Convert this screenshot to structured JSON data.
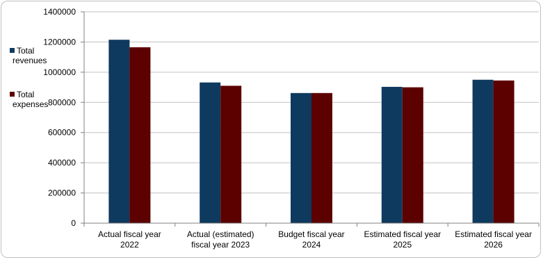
{
  "chart_data": {
    "type": "bar",
    "categories": [
      [
        "Actual fiscal year",
        "2022"
      ],
      [
        "Actual (estimated)",
        "fiscal year 2023"
      ],
      [
        "Budget fiscal year",
        "2024"
      ],
      [
        "Estimated fiscal year",
        "2025"
      ],
      [
        "Estimated fiscal year",
        "2026"
      ]
    ],
    "series": [
      {
        "name": [
          "Total",
          "revenues"
        ],
        "color": "#0f3a5f",
        "values": [
          1215000,
          932000,
          862000,
          903000,
          950000
        ]
      },
      {
        "name": [
          "Total",
          "expenses"
        ],
        "color": "#5c0000",
        "values": [
          1165000,
          910000,
          862000,
          900000,
          945000
        ]
      }
    ],
    "ylim": [
      0,
      1400000
    ],
    "yticks": [
      0,
      200000,
      400000,
      600000,
      800000,
      1000000,
      1200000,
      1400000
    ],
    "grid": true,
    "legend_position": "left"
  }
}
